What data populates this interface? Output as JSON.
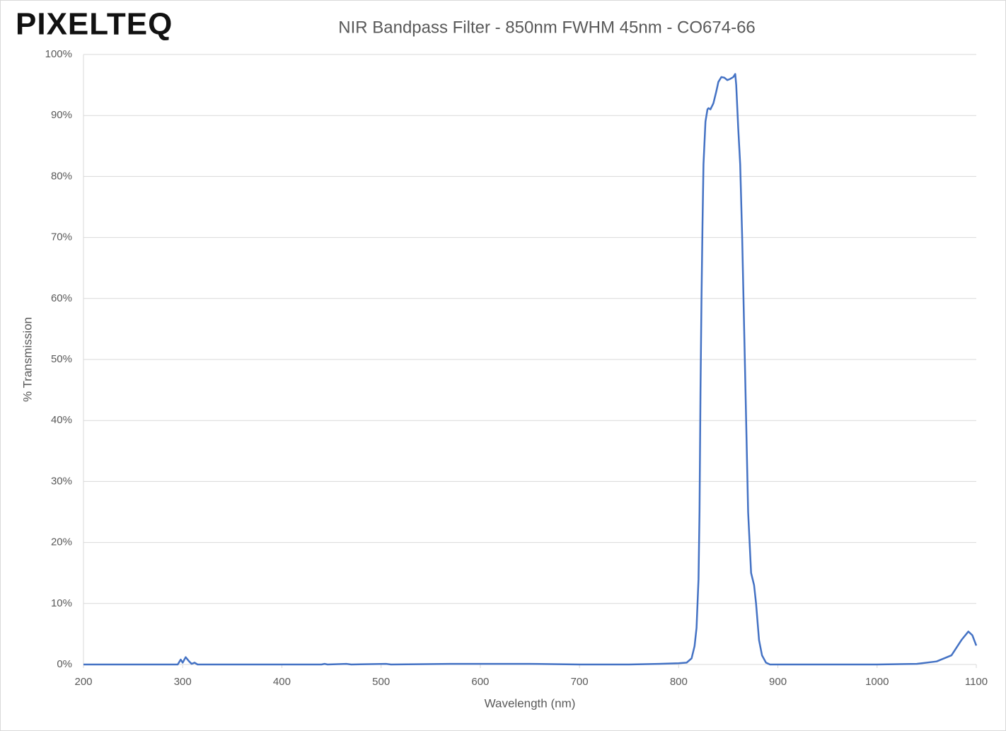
{
  "logo": "PIXELTEQ",
  "chart_data": {
    "type": "line",
    "title": "NIR Bandpass Filter - 850nm FWHM 45nm - CO674-66",
    "x_label": "Wavelength (nm)",
    "y_label": "% Transmission",
    "xlim": [
      200,
      1100
    ],
    "xticks": [
      200,
      300,
      400,
      500,
      600,
      700,
      800,
      900,
      1000,
      1100
    ],
    "ylim": [
      0,
      100
    ],
    "yticks": [
      {
        "value": 0,
        "label": "0%"
      },
      {
        "value": 10,
        "label": "10%"
      },
      {
        "value": 20,
        "label": "20%"
      },
      {
        "value": 30,
        "label": "30%"
      },
      {
        "value": 40,
        "label": "40%"
      },
      {
        "value": 50,
        "label": "50%"
      },
      {
        "value": 60,
        "label": "60%"
      },
      {
        "value": 70,
        "label": "70%"
      },
      {
        "value": 80,
        "label": "80%"
      },
      {
        "value": 90,
        "label": "90%"
      },
      {
        "value": 100,
        "label": "100%"
      }
    ],
    "grid": true,
    "x": [
      200,
      295,
      298,
      300,
      303,
      306,
      309,
      312,
      315,
      400,
      440,
      443,
      446,
      465,
      470,
      505,
      510,
      570,
      600,
      650,
      700,
      750,
      780,
      800,
      808,
      813,
      816,
      818,
      820,
      821,
      822,
      823,
      824,
      825,
      827,
      829,
      830,
      832,
      835,
      838,
      840,
      843,
      846,
      849,
      852,
      855,
      857,
      858,
      860,
      862,
      864,
      866,
      868,
      870,
      873,
      876,
      878,
      881,
      884,
      888,
      892,
      1000,
      1040,
      1060,
      1075,
      1085,
      1092,
      1096,
      1100
    ],
    "series": [
      {
        "name": "CO674-66",
        "color": "#4472c4",
        "values": [
          0,
          0,
          0.8,
          0.3,
          1.2,
          0.6,
          0.1,
          0.3,
          0,
          0,
          0,
          0.1,
          0,
          0.1,
          0,
          0.1,
          0,
          0.1,
          0.1,
          0.1,
          0,
          0,
          0.1,
          0.2,
          0.3,
          1,
          3,
          6,
          14,
          25,
          45,
          60,
          72,
          82,
          89,
          91,
          91.2,
          91,
          92,
          94,
          95.5,
          96.3,
          96.2,
          95.8,
          96,
          96.3,
          96.8,
          95,
          88,
          82,
          70,
          55,
          40,
          25,
          15,
          13,
          10,
          4,
          1.5,
          0.3,
          0,
          0,
          0.1,
          0.5,
          1.5,
          4,
          5.4,
          4.8,
          3.1
        ]
      }
    ]
  }
}
